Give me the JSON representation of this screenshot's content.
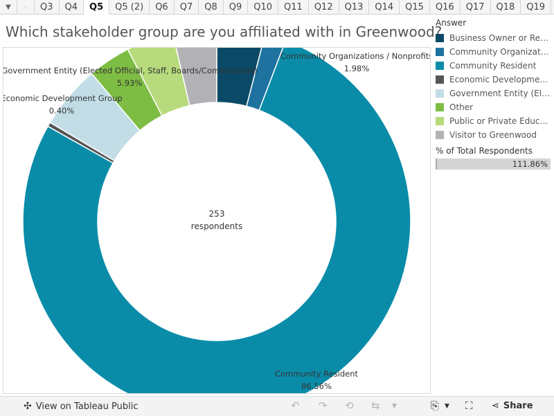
{
  "tabs": [
    "Q3",
    "Q4",
    "Q5",
    "Q5 (2)",
    "Q6",
    "Q7",
    "Q8",
    "Q9",
    "Q10",
    "Q11",
    "Q12",
    "Q13",
    "Q14",
    "Q15",
    "Q16",
    "Q17",
    "Q18",
    "Q19"
  ],
  "active_tab": "Q5",
  "chart_data": {
    "type": "pie",
    "subtype": "donut",
    "title": "Which stakeholder group are you affiliated with in Greenwood?",
    "center_value": "253",
    "center_label": "respondents",
    "slices": [
      {
        "label": "Business Owner or Representative",
        "value": 4.5,
        "color": "#0b4a66"
      },
      {
        "label": "Community Organizations / Nonprofits",
        "value": 1.98,
        "color": "#1e72a0",
        "callout": "Community Organizations / Nonprofits",
        "callout_value": "1.98%"
      },
      {
        "label": "Community Resident",
        "value": 86.56,
        "color": "#0a8ca9",
        "callout": "Community Resident",
        "callout_value": "86.56%"
      },
      {
        "label": "Economic Development Group",
        "value": 0.4,
        "color": "#555555",
        "callout": "Economic Development Group",
        "callout_value": "0.40%"
      },
      {
        "label": "Government Entity (Elected Official, Staff, Boards/Commissions)",
        "value": 5.93,
        "color": "#c2dde6",
        "callout": "Government Entity (Elected Official, Staff, Boards/Commissions)",
        "callout_value": "5.93%"
      },
      {
        "label": "Other",
        "value": 4.0,
        "color": "#7ebd44"
      },
      {
        "label": "Public or Private Education",
        "value": 4.4,
        "color": "#b7db7c"
      },
      {
        "label": "Visitor to Greenwood",
        "value": 4.09,
        "color": "#b2b2b6"
      }
    ]
  },
  "legend": {
    "title": "Answer",
    "items": [
      {
        "label": "Business Owner or Rep…",
        "color": "#0b4a66"
      },
      {
        "label": "Community Organizati…",
        "color": "#1e72a0"
      },
      {
        "label": "Community Resident",
        "color": "#0a8ca9"
      },
      {
        "label": "Economic Development…",
        "color": "#555555"
      },
      {
        "label": "Government Entity (Ele…",
        "color": "#c2dde6"
      },
      {
        "label": "Other",
        "color": "#7ebd44"
      },
      {
        "label": "Public or Private Educa…",
        "color": "#b7db7c"
      },
      {
        "label": "Visitor to Greenwood",
        "color": "#b2b2b6"
      }
    ],
    "pct_title": "% of Total Respondents",
    "pct_value": "111.86%"
  },
  "footer": {
    "view_label": "View on Tableau Public",
    "share_label": "Share"
  }
}
